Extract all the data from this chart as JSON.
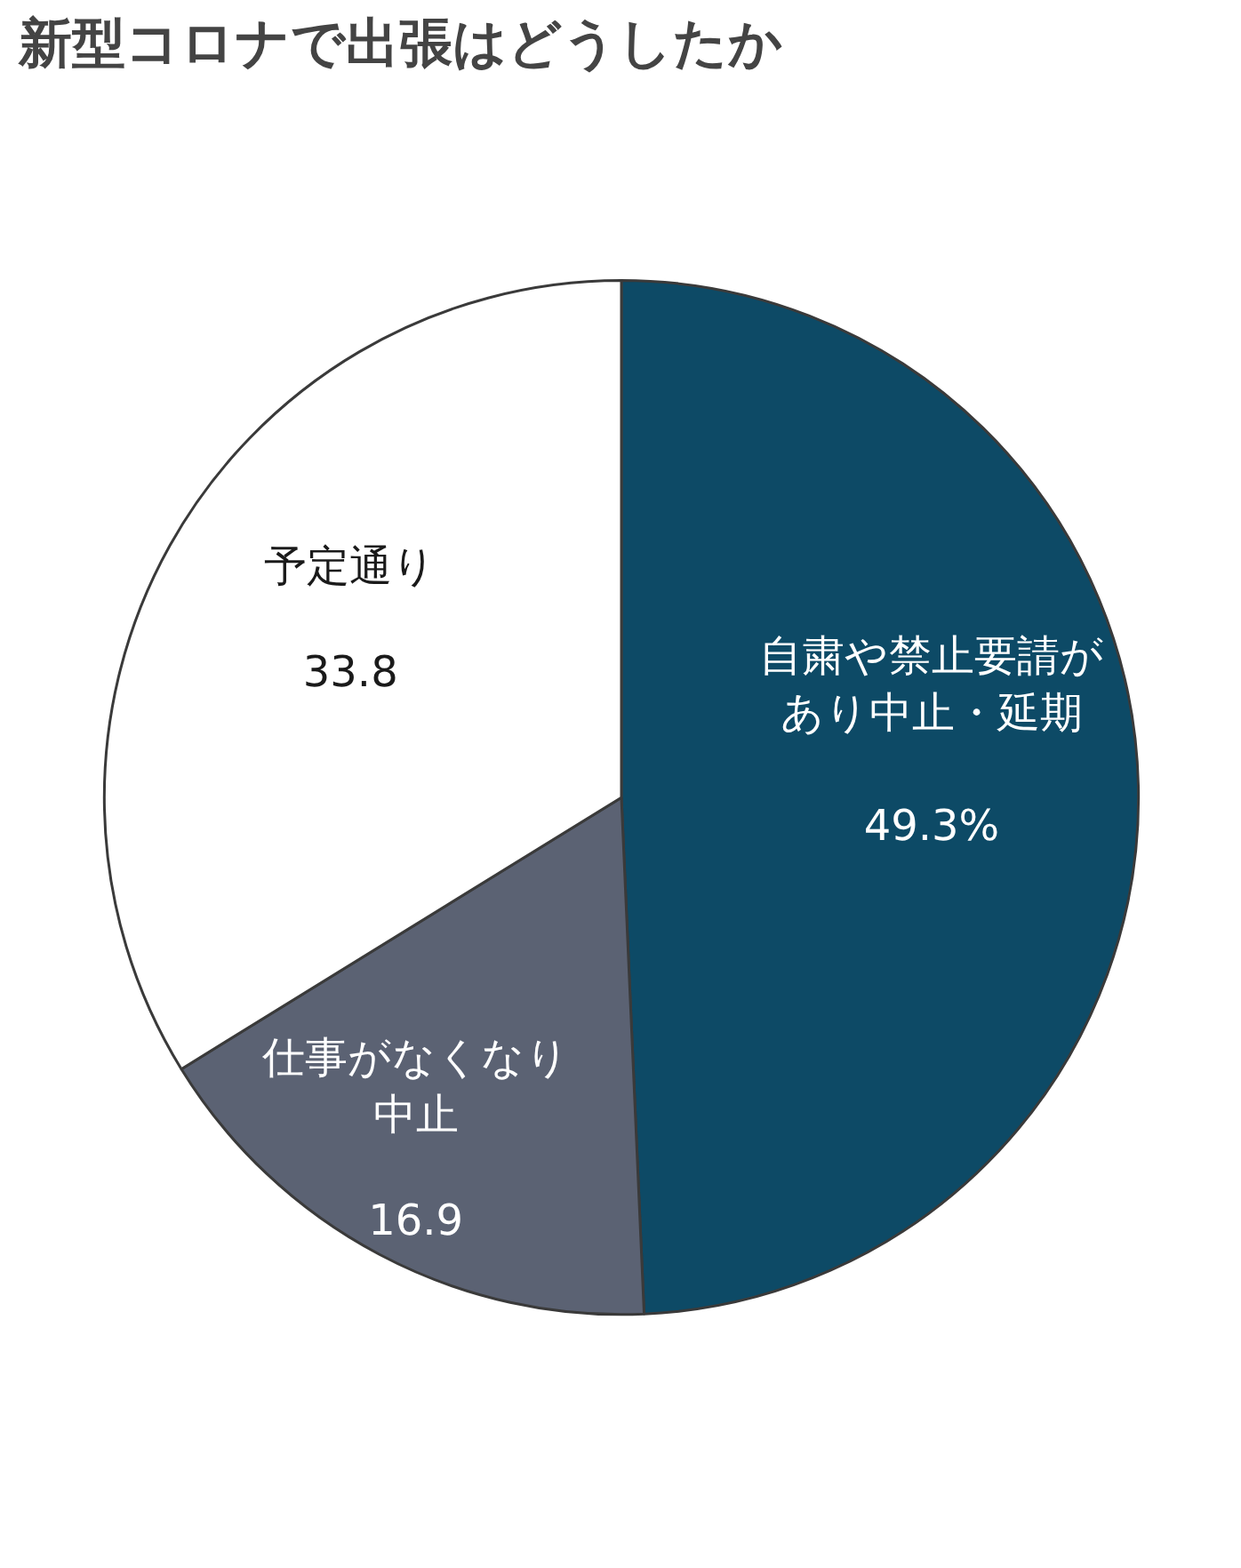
{
  "chart_data": {
    "type": "pie",
    "title": "新型コロナで出張はどうしたか",
    "categories": [
      "自粛や禁止要請があり中止・延期",
      "仕事がなくなり中止",
      "予定通り"
    ],
    "values": [
      49.3,
      16.9,
      33.8
    ],
    "colors": [
      "#0d4a66",
      "#5b6273",
      "#ffffff"
    ],
    "value_labels": [
      "49.3%",
      "16.9",
      "33.8"
    ]
  }
}
